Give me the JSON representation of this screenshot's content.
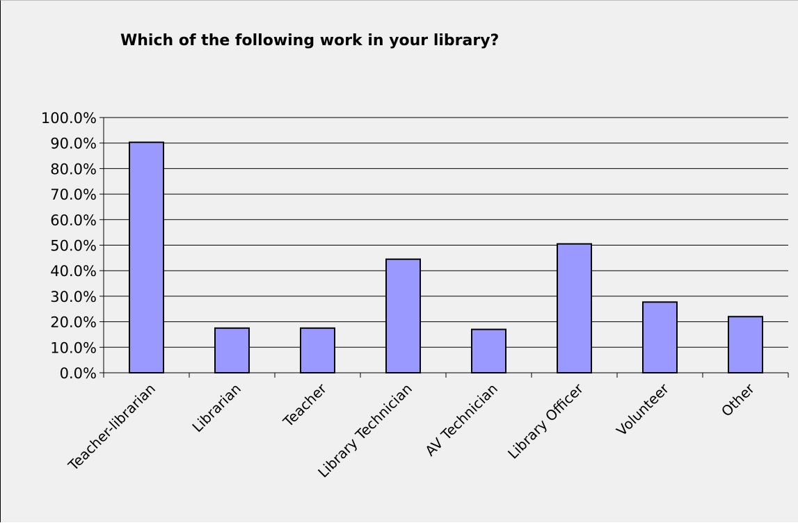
{
  "chart_data": {
    "type": "bar",
    "title": "Which of the following work in your library?",
    "xlabel": "",
    "ylabel": "",
    "categories": [
      "Teacher-librarian",
      "Librarian",
      "Teacher",
      "Library Technician",
      "AV Technician",
      "Library Officer",
      "Volunteer",
      "Other"
    ],
    "values": [
      90.3,
      17.5,
      17.5,
      44.5,
      17.0,
      50.5,
      27.7,
      22.0
    ],
    "ylim": [
      0,
      100
    ],
    "yticks": [
      "0.0%",
      "10.0%",
      "20.0%",
      "30.0%",
      "40.0%",
      "50.0%",
      "60.0%",
      "70.0%",
      "80.0%",
      "90.0%",
      "100.0%"
    ],
    "grid": true,
    "legend": "none",
    "bar_color": "#9999ff",
    "bar_border_color": "#000000",
    "background_color": "#f0f0f0"
  }
}
